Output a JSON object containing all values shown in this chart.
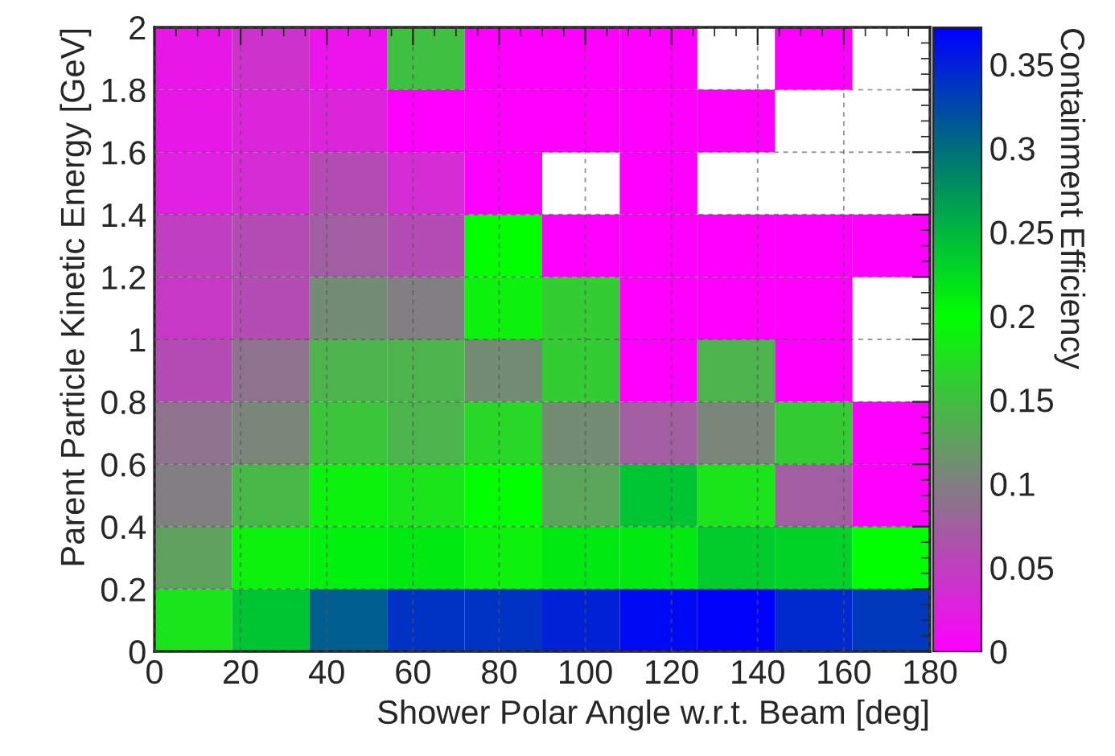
{
  "chart_data": {
    "type": "heatmap",
    "xlabel": "Shower Polar Angle w.r.t. Beam [deg]",
    "ylabel": "Parent Particle Kinetic Energy [GeV]",
    "clabel": "Containment Efficiency",
    "xlim": [
      0,
      180
    ],
    "xticks": [
      0,
      20,
      40,
      60,
      80,
      100,
      120,
      140,
      160,
      180
    ],
    "ylim": [
      0,
      2
    ],
    "yticks": [
      0,
      0.2,
      0.4,
      0.6,
      0.8,
      1,
      1.2,
      1.4,
      1.6,
      1.8,
      2
    ],
    "clim": [
      0,
      0.372
    ],
    "cticks": [
      0,
      0.05,
      0.1,
      0.15,
      0.2,
      0.25,
      0.3,
      0.35
    ],
    "grid": true,
    "cells": [
      [
        0.02,
        0.04,
        0.015,
        0.15,
        0,
        0,
        0,
        null,
        0,
        null
      ],
      [
        0.02,
        0.03,
        0.03,
        0,
        0,
        0,
        0,
        0,
        null,
        null
      ],
      [
        0.025,
        0.035,
        0.06,
        0.035,
        0,
        null,
        0,
        null,
        null,
        null
      ],
      [
        0.05,
        0.06,
        0.075,
        0.06,
        0.2,
        0,
        0,
        0,
        0,
        0
      ],
      [
        0.045,
        0.06,
        0.11,
        0.1,
        0.19,
        0.16,
        0,
        0,
        0,
        null
      ],
      [
        0.06,
        0.09,
        0.14,
        0.14,
        0.11,
        0.16,
        0,
        0.14,
        0,
        null
      ],
      [
        0.09,
        0.105,
        0.155,
        0.14,
        0.17,
        0.11,
        0.075,
        0.105,
        0.16,
        0
      ],
      [
        0.1,
        0.145,
        0.19,
        0.18,
        0.2,
        0.13,
        0.24,
        0.18,
        0.075,
        0
      ],
      [
        0.125,
        0.19,
        0.21,
        0.215,
        0.19,
        0.215,
        0.215,
        0.235,
        0.23,
        0.2
      ],
      [
        0.18,
        0.24,
        0.31,
        0.34,
        0.34,
        0.35,
        0.365,
        0.37,
        0.345,
        0.335
      ]
    ]
  }
}
